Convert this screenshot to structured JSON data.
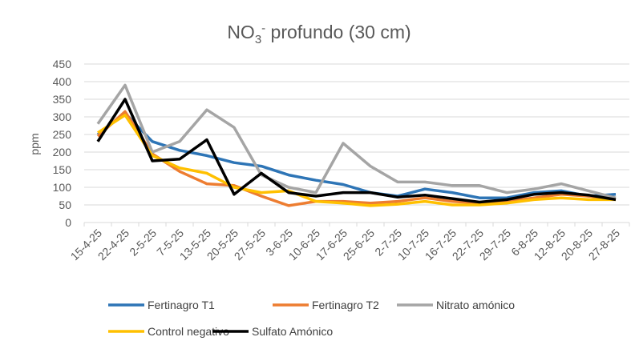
{
  "chart_data": {
    "type": "line",
    "title": {
      "main": "NO",
      "sub": "3",
      "sup": "-",
      "rest": " profundo  (30 cm)"
    },
    "xlabel": "",
    "ylabel": "ppm",
    "ylim": [
      0,
      450
    ],
    "yticks": [
      0,
      50,
      100,
      150,
      200,
      250,
      300,
      350,
      400,
      450
    ],
    "grid": true,
    "legend_placement": "bottom",
    "categories": [
      "15-4-25",
      "22-4-25",
      "2-5-25",
      "7-5-25",
      "13-5-25",
      "20-5-25",
      "27-5-25",
      "3-6-25",
      "10-6-25",
      "17-6-25",
      "25-6-25",
      "2-7-25",
      "10-7-25",
      "16-7-25",
      "22-7-25",
      "29-7-25",
      "6-8-25",
      "12-8-25",
      "20-8-25",
      "27-8-25"
    ],
    "series": [
      {
        "name": "Fertinagro T1",
        "color": "#2E75B6",
        "values": [
          250,
          310,
          230,
          205,
          190,
          170,
          160,
          135,
          120,
          108,
          85,
          75,
          95,
          85,
          70,
          70,
          85,
          90,
          75,
          80
        ]
      },
      {
        "name": "Fertinagro T2",
        "color": "#ED7D31",
        "values": [
          245,
          315,
          195,
          145,
          110,
          105,
          75,
          48,
          60,
          60,
          55,
          60,
          70,
          60,
          55,
          60,
          70,
          80,
          75,
          65
        ]
      },
      {
        "name": "Nitrato amónico",
        "color": "#A5A5A5",
        "values": [
          280,
          390,
          200,
          230,
          320,
          270,
          135,
          100,
          85,
          225,
          160,
          115,
          115,
          105,
          105,
          85,
          95,
          110,
          90,
          70
        ]
      },
      {
        "name": "Control negativo",
        "color": "#FFC000",
        "values": [
          255,
          305,
          190,
          155,
          140,
          100,
          85,
          90,
          60,
          55,
          48,
          52,
          60,
          50,
          50,
          55,
          65,
          70,
          65,
          65
        ]
      },
      {
        "name": "Sulfato Amónico",
        "color": "#000000",
        "values": [
          230,
          350,
          175,
          180,
          235,
          80,
          140,
          85,
          75,
          85,
          85,
          72,
          78,
          68,
          58,
          65,
          80,
          85,
          78,
          65
        ]
      }
    ]
  }
}
